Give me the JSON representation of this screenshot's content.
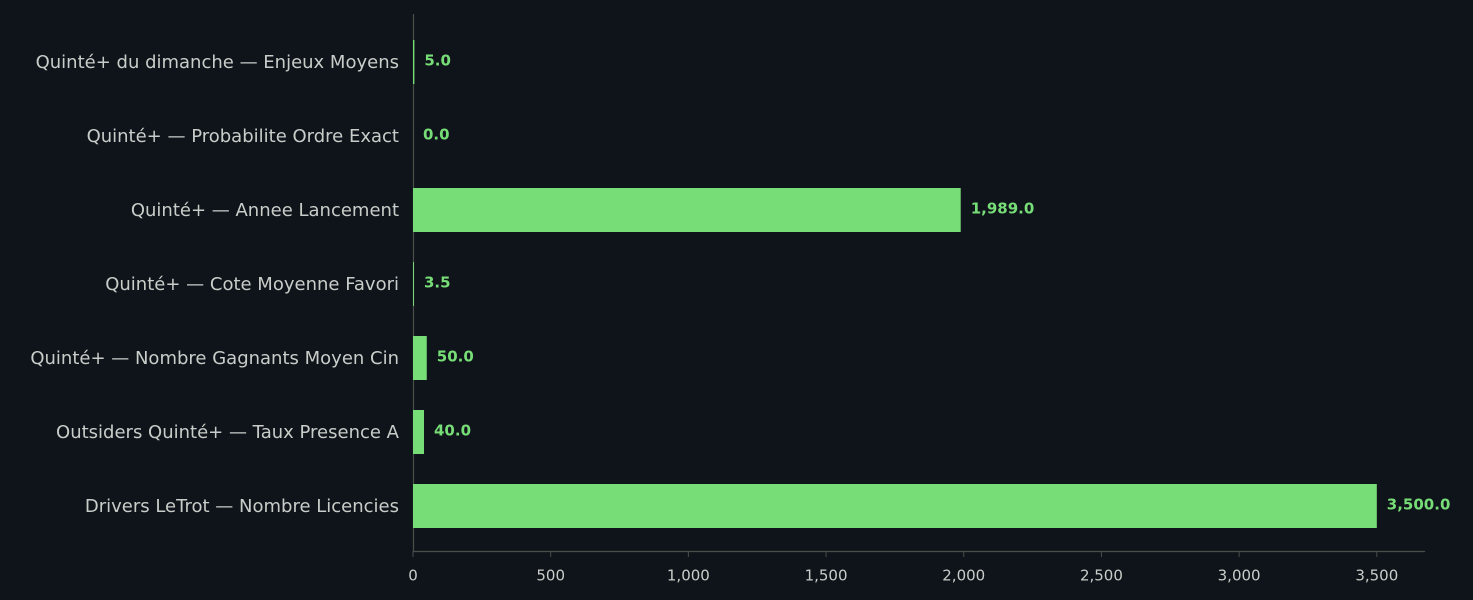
{
  "chart_data": {
    "type": "bar",
    "orientation": "horizontal",
    "categories": [
      "Quinté+ du dimanche — Enjeux Moyens",
      "Quinté+ — Probabilite Ordre Exact",
      "Quinté+ — Annee Lancement",
      "Quinté+ — Cote Moyenne Favori",
      "Quinté+ — Nombre Gagnants Moyen Cin",
      "Outsiders Quinté+ — Taux Presence A",
      "Drivers LeTrot — Nombre Licencies"
    ],
    "values": [
      5,
      0,
      1989,
      3.5,
      50,
      40,
      3500
    ],
    "value_labels": [
      "5.0",
      "0.0",
      "1,989.0",
      "3.5",
      "50.0",
      "40.0",
      "3,500.0"
    ],
    "color": "#77dd77",
    "xlim": [
      0,
      3675
    ],
    "xticks": [
      0,
      500,
      {
        "value": 1000,
        "label": "1,000"
      },
      {
        "value": 1500,
        "label": "1,500"
      },
      {
        "value": 2000,
        "label": "2,000"
      },
      {
        "value": 2500,
        "label": "2,500"
      },
      {
        "value": 3000,
        "label": "3,000"
      },
      {
        "value": 3500,
        "label": "3,500"
      }
    ],
    "grid": false
  }
}
